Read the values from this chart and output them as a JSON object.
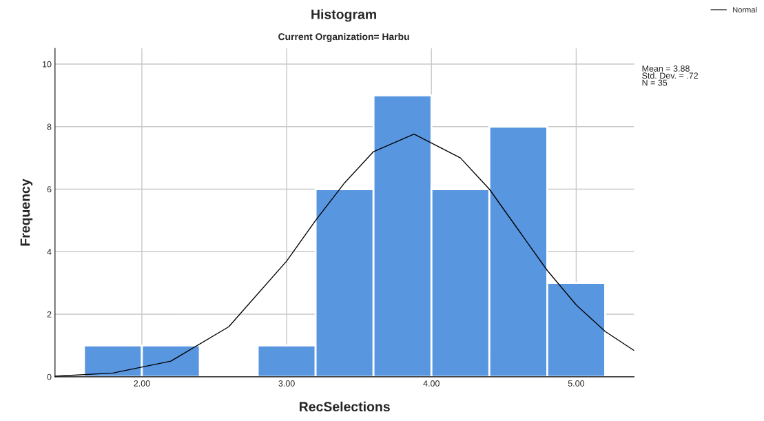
{
  "chart_data": {
    "type": "histogram",
    "title": "Histogram",
    "subtitle": "Current Organization= Harbu",
    "xlabel": "RecSelections",
    "ylabel": "Frequency",
    "bins": [
      1.6,
      2.0,
      2.4,
      2.8,
      3.2,
      3.6,
      4.0,
      4.4,
      4.8,
      5.2
    ],
    "values": [
      1,
      1,
      0,
      1,
      6,
      9,
      6,
      8,
      3
    ],
    "color": "#5896e0",
    "series": [
      {
        "name": "Normal",
        "type": "line",
        "color": "#000000",
        "x": [
          1.4,
          1.8,
          2.2,
          2.6,
          3.0,
          3.2,
          3.4,
          3.6,
          3.88,
          4.2,
          4.4,
          4.6,
          4.8,
          5.0,
          5.2,
          5.4
        ],
        "values": [
          0.02,
          0.12,
          0.5,
          1.6,
          3.7,
          5.0,
          6.2,
          7.2,
          7.76,
          7.0,
          6.0,
          4.7,
          3.4,
          2.3,
          1.45,
          0.84
        ]
      }
    ],
    "xlim": [
      1.4,
      5.4
    ],
    "ylim": [
      0,
      10.5
    ],
    "xticks": [
      {
        "value": 2,
        "label": "2.00"
      },
      {
        "value": 3,
        "label": "3.00"
      },
      {
        "value": 4,
        "label": "4.00"
      },
      {
        "value": 5,
        "label": "5.00"
      }
    ],
    "yticks": [
      0,
      2,
      4,
      6,
      8,
      10
    ],
    "grid": true,
    "legend": "top right",
    "annotations": [
      "Mean = 3.88\nStd. Dev. = .72\nN = 35"
    ]
  }
}
